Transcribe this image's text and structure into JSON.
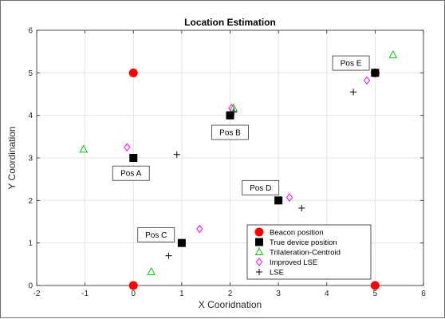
{
  "chart_data": {
    "type": "scatter",
    "title": "Location Estimation",
    "xlabel": "X Cooridnation",
    "ylabel": "Y Coordination",
    "xlim": [
      -2,
      6
    ],
    "ylim": [
      0,
      6
    ],
    "xticks": [
      -2,
      -1,
      0,
      1,
      2,
      3,
      4,
      5,
      6
    ],
    "yticks": [
      0,
      1,
      2,
      3,
      4,
      5,
      6
    ],
    "grid": true,
    "legend_position": "bottom-right",
    "series": [
      {
        "name": "Beacon position",
        "marker": "filled-circle",
        "color": "#ff0000",
        "points": [
          [
            0,
            5
          ],
          [
            5,
            5
          ],
          [
            0,
            0
          ],
          [
            5,
            0
          ]
        ]
      },
      {
        "name": "True device position",
        "marker": "filled-square",
        "color": "#000000",
        "points": [
          [
            0,
            3
          ],
          [
            1,
            1
          ],
          [
            2,
            4
          ],
          [
            3,
            2
          ],
          [
            5,
            5
          ]
        ]
      },
      {
        "name": "Trilateration-Centroid",
        "marker": "triangle",
        "color": "#00cc00",
        "points": [
          [
            -1.03,
            3.2
          ],
          [
            0.37,
            0.32
          ],
          [
            2.07,
            4.17
          ],
          [
            5.37,
            5.42
          ]
        ]
      },
      {
        "name": "Improved LSE",
        "marker": "diamond",
        "color": "#ff00ff",
        "points": [
          [
            -0.13,
            3.25
          ],
          [
            1.37,
            1.33
          ],
          [
            2.03,
            4.17
          ],
          [
            3.23,
            2.07
          ],
          [
            4.83,
            4.82
          ]
        ]
      },
      {
        "name": "LSE",
        "marker": "plus",
        "color": "#000000",
        "points": [
          [
            0.9,
            3.08
          ],
          [
            0.73,
            0.7
          ],
          [
            2.08,
            4.08
          ],
          [
            3.48,
            1.82
          ],
          [
            4.55,
            4.55
          ]
        ]
      }
    ],
    "annotations": [
      {
        "text": "Pos A",
        "x": -0.05,
        "y": 2.64
      },
      {
        "text": "Pos B",
        "x": 2.0,
        "y": 3.6
      },
      {
        "text": "Pos C",
        "x": 0.47,
        "y": 1.19
      },
      {
        "text": "Pos D",
        "x": 2.63,
        "y": 2.3
      },
      {
        "text": "Pos E",
        "x": 4.5,
        "y": 5.23
      }
    ]
  }
}
